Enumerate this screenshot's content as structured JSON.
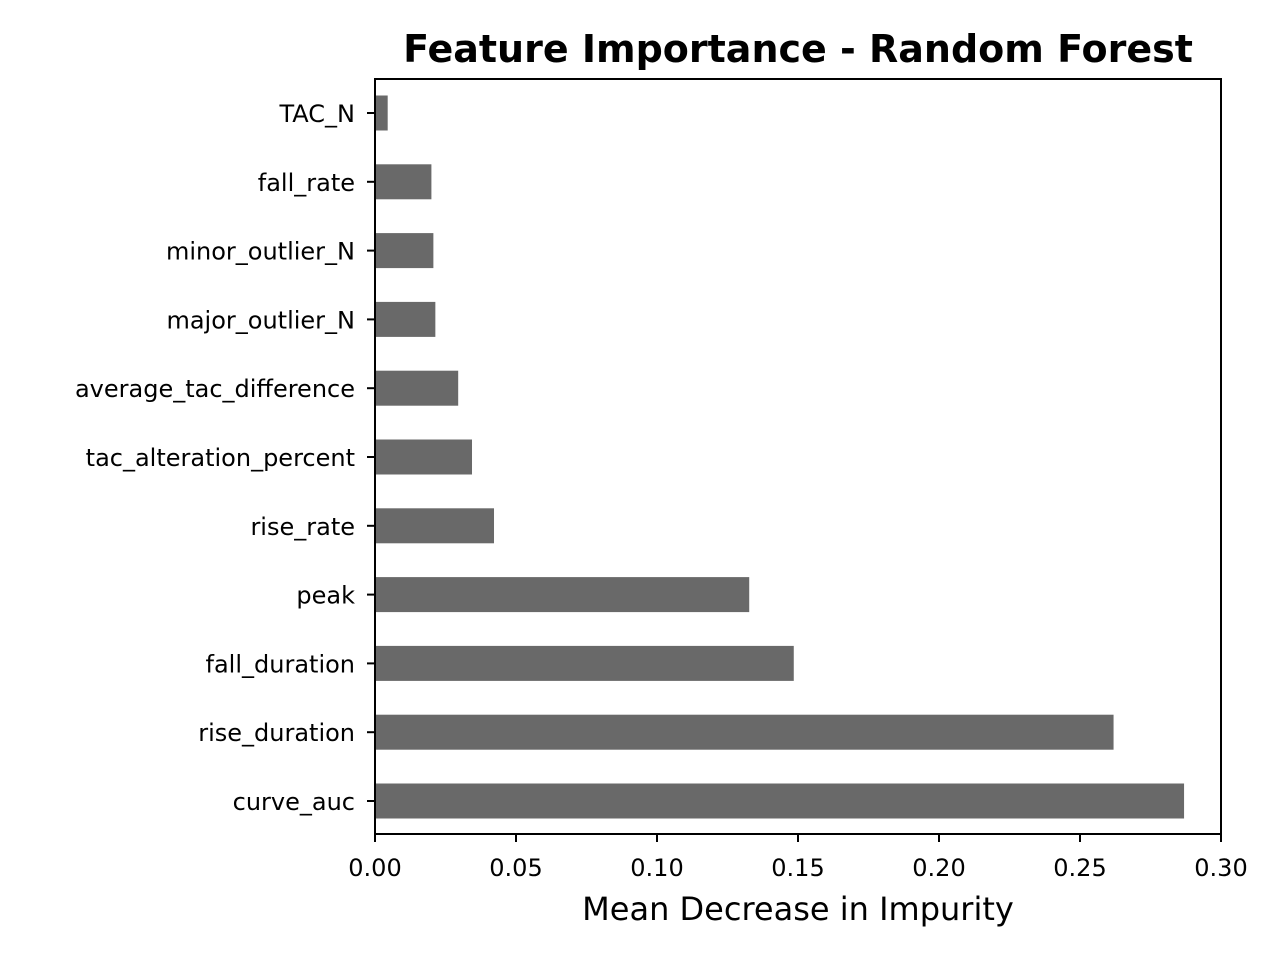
{
  "chart_data": {
    "type": "bar",
    "orientation": "horizontal",
    "title": "Feature Importance - Random Forest",
    "xlabel": "Mean Decrease in Impurity",
    "ylabel": "",
    "xlim": [
      0,
      0.3
    ],
    "xticks": [
      0.0,
      0.05,
      0.1,
      0.15,
      0.2,
      0.25,
      0.3
    ],
    "xtick_labels": [
      "0.00",
      "0.05",
      "0.10",
      "0.15",
      "0.20",
      "0.25",
      "0.30"
    ],
    "grid": false,
    "bar_color": "#696969",
    "categories": [
      "TAC_N",
      "fall_rate",
      "minor_outlier_N",
      "major_outlier_N",
      "average_tac_difference",
      "tac_alteration_percent",
      "rise_rate",
      "peak",
      "fall_duration",
      "rise_duration",
      "curve_auc"
    ],
    "values": [
      0.0045,
      0.02,
      0.0207,
      0.0214,
      0.0295,
      0.0344,
      0.0422,
      0.1327,
      0.1485,
      0.2619,
      0.2869
    ]
  }
}
